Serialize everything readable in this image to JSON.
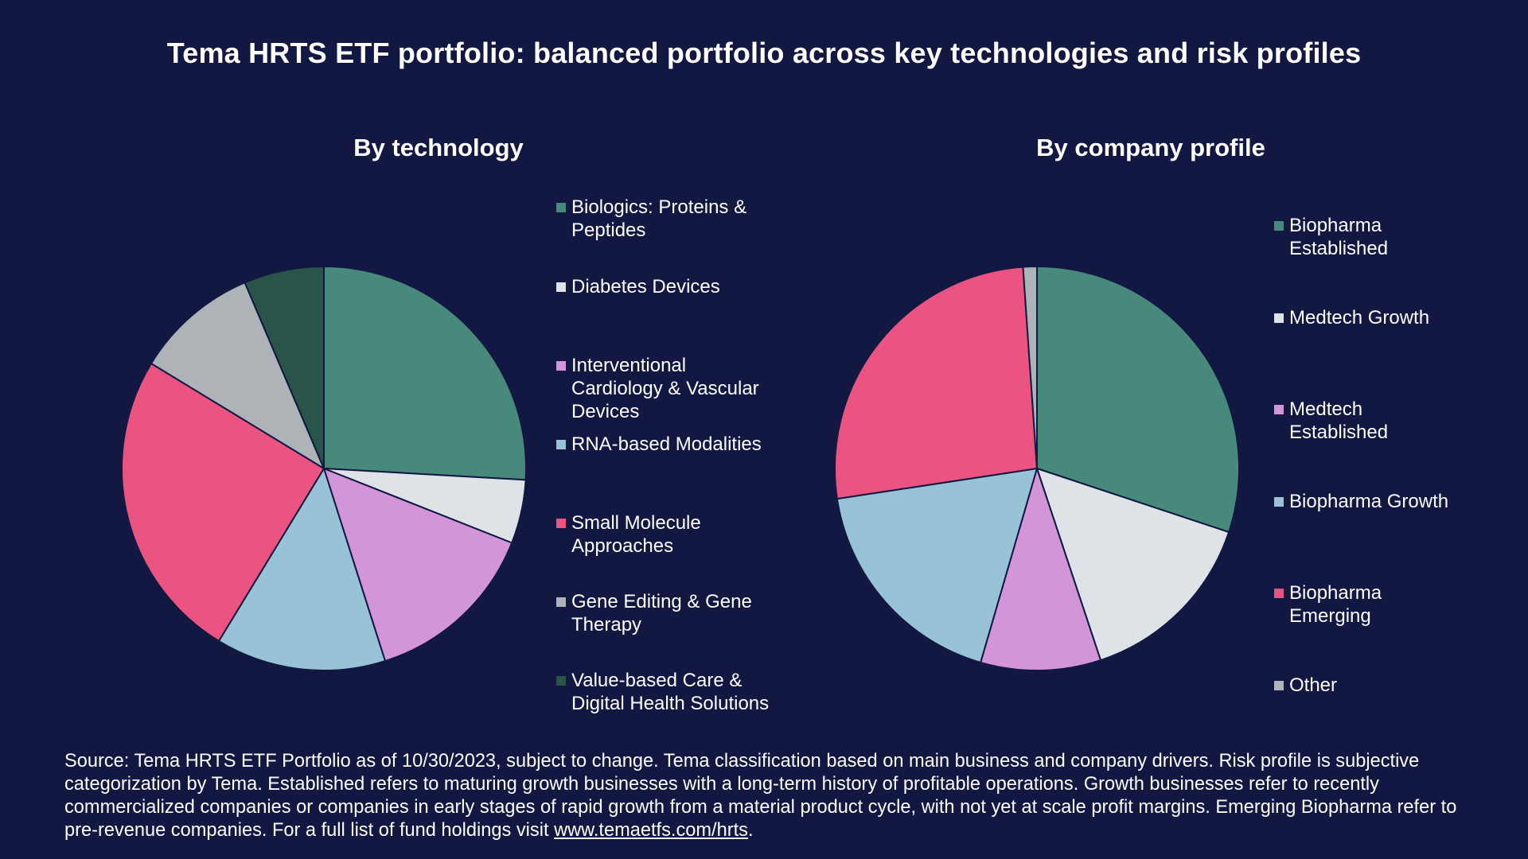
{
  "title": "Tema HRTS ETF portfolio: balanced portfolio across key technologies and risk profiles",
  "chart_data": [
    {
      "type": "pie",
      "title": "By technology",
      "legend_position": "right",
      "slices": [
        {
          "label": "Biologics: Proteins & Peptides",
          "value": 25.9,
          "color": "#478a7c"
        },
        {
          "label": "Diabetes Devices",
          "value": 5.1,
          "color": "#dee3e7"
        },
        {
          "label": "Interventional Cardiology & Vascular Devices",
          "value": 14.1,
          "color": "#d195d8"
        },
        {
          "label": "RNA-based Modalities",
          "value": 13.6,
          "color": "#98c3d6"
        },
        {
          "label": "Small Molecule Approaches",
          "value": 25.0,
          "color": "#eb5480"
        },
        {
          "label": "Gene Editing & Gene Therapy",
          "value": 9.9,
          "color": "#aeb3b8"
        },
        {
          "label": "Value-based Care & Digital Health Solutions",
          "value": 6.4,
          "color": "#28544a"
        }
      ]
    },
    {
      "type": "pie",
      "title": "By company profile",
      "legend_position": "right",
      "slices": [
        {
          "label": "Biopharma Established",
          "value": 30.1,
          "color": "#478a7c"
        },
        {
          "label": "Medtech Growth",
          "value": 14.8,
          "color": "#dee3e7"
        },
        {
          "label": "Medtech Established",
          "value": 9.6,
          "color": "#d195d8"
        },
        {
          "label": "Biopharma Growth",
          "value": 18.1,
          "color": "#98c3d6"
        },
        {
          "label": "Biopharma Emerging",
          "value": 26.3,
          "color": "#eb5480"
        },
        {
          "label": "Other",
          "value": 1.1,
          "color": "#aeb3b8"
        }
      ]
    }
  ],
  "source": {
    "text": "Source: Tema HRTS ETF Portfolio as of 10/30/2023, subject to change. Tema classification based on main business and company drivers. Risk profile is subjective categorization by Tema.  Established refers to maturing growth businesses with a long-term history of profitable operations. Growth businesses refer to recently commercialized companies or companies in early stages of rapid growth from a material product cycle, with not yet at scale profit margins. Emerging Biopharma refer to pre-revenue companies. For a full list of fund holdings visit ",
    "link_text": "www.temaetfs.com/hrts",
    "end": "."
  }
}
